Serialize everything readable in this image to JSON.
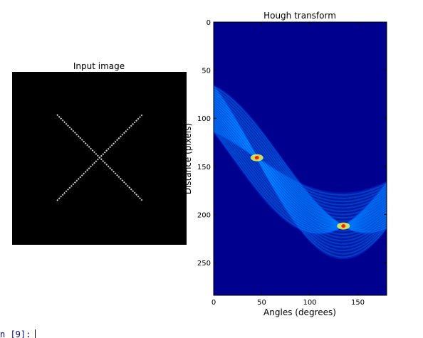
{
  "chart_data": [
    {
      "type": "image",
      "title": "Input image"
    },
    {
      "type": "image",
      "title": "Hough transform",
      "xlabel": "Angles (degrees)",
      "ylabel": "Distance (pixels)",
      "xlim": [
        0,
        180
      ],
      "ylim": [
        284,
        0
      ],
      "xticks": [
        0,
        50,
        100,
        150
      ],
      "yticks": [
        0,
        50,
        100,
        150,
        200,
        250
      ]
    }
  ],
  "prompt": "n [9]:"
}
